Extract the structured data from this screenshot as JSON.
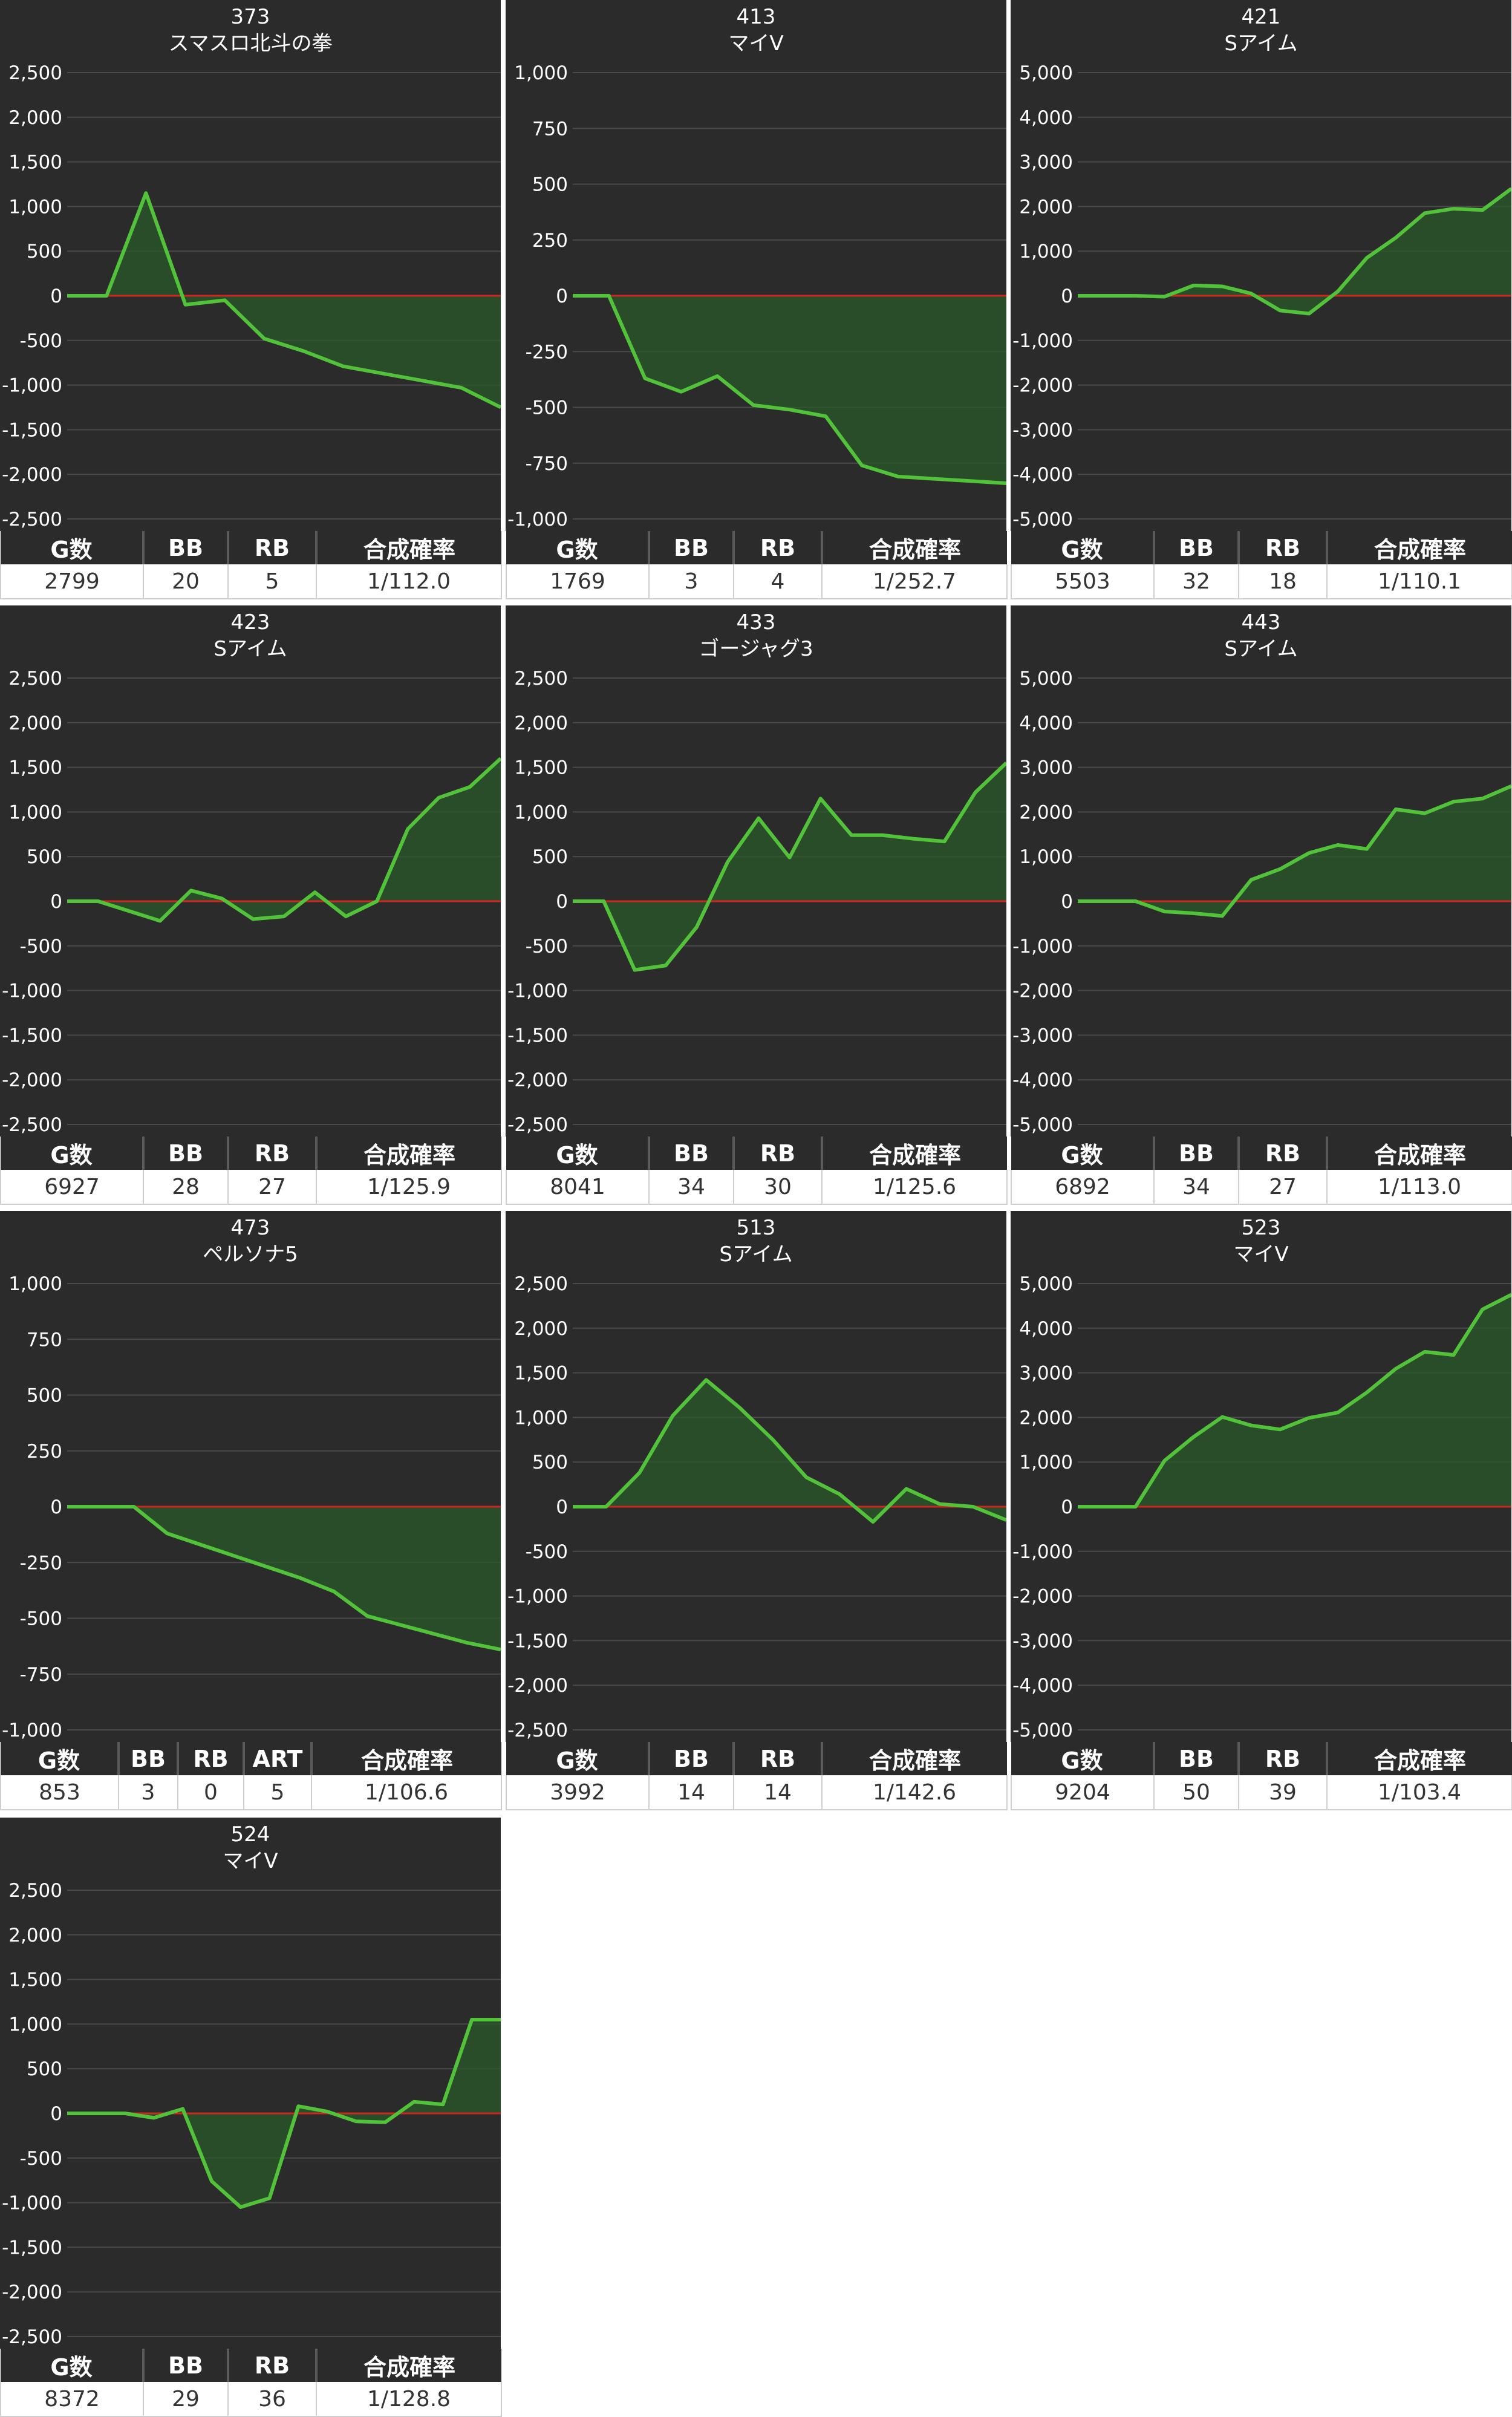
{
  "columns3": [
    "G数",
    "BB",
    "RB",
    "合成確率"
  ],
  "columns4": [
    "G数",
    "BB",
    "RB",
    "ART",
    "合成確率"
  ],
  "chart_data": [
    {
      "type": "area",
      "number": "373",
      "name": "スマスロ北斗の拳",
      "ylim": [
        -2500,
        2500
      ],
      "yticks": [
        2500,
        2000,
        1500,
        1000,
        500,
        0,
        -500,
        -1000,
        -1500,
        -2000,
        -2500
      ],
      "tick_labels": [
        "2,500",
        "2,000",
        "1,500",
        "1,000",
        "500",
        "0",
        "-500",
        "-1,000",
        "-1,500",
        "-2,000",
        "-2,500"
      ],
      "values": [
        0,
        0,
        1150,
        -100,
        -50,
        -480,
        -620,
        -790,
        -870,
        -950,
        -1030,
        -1250
      ],
      "stats": {
        "g": "2799",
        "bb": "20",
        "rb": "5",
        "prob": "1/112.0"
      }
    },
    {
      "type": "area",
      "number": "413",
      "name": "マイV",
      "ylim": [
        -1000,
        1000
      ],
      "yticks": [
        1000,
        750,
        500,
        250,
        0,
        -250,
        -500,
        -750,
        -1000
      ],
      "tick_labels": [
        "1,000",
        "750",
        "500",
        "250",
        "0",
        "-250",
        "-500",
        "-750",
        "-1,000"
      ],
      "values": [
        0,
        0,
        -370,
        -430,
        -360,
        -490,
        -510,
        -540,
        -760,
        -810,
        -820,
        -830,
        -840
      ],
      "stats": {
        "g": "1769",
        "bb": "3",
        "rb": "4",
        "prob": "1/252.7"
      }
    },
    {
      "type": "area",
      "number": "421",
      "name": "Sアイム",
      "ylim": [
        -5000,
        5000
      ],
      "yticks": [
        5000,
        4000,
        3000,
        2000,
        1000,
        0,
        -1000,
        -2000,
        -3000,
        -4000,
        -5000
      ],
      "tick_labels": [
        "5,000",
        "4,000",
        "3,000",
        "2,000",
        "1,000",
        "0",
        "-1,000",
        "-2,000",
        "-3,000",
        "-4,000",
        "-5,000"
      ],
      "values": [
        0,
        0,
        0,
        -20,
        230,
        210,
        50,
        -330,
        -400,
        100,
        850,
        1300,
        1850,
        1950,
        1920,
        2400
      ],
      "stats": {
        "g": "5503",
        "bb": "32",
        "rb": "18",
        "prob": "1/110.1"
      }
    },
    {
      "type": "area",
      "number": "423",
      "name": "Sアイム",
      "ylim": [
        -2500,
        2500
      ],
      "yticks": [
        2500,
        2000,
        1500,
        1000,
        500,
        0,
        -500,
        -1000,
        -1500,
        -2000,
        -2500
      ],
      "tick_labels": [
        "2,500",
        "2,000",
        "1,500",
        "1,000",
        "500",
        "0",
        "-500",
        "-1,000",
        "-1,500",
        "-2,000",
        "-2,500"
      ],
      "values": [
        0,
        0,
        -110,
        -220,
        120,
        30,
        -200,
        -170,
        100,
        -170,
        0,
        810,
        1160,
        1280,
        1600
      ],
      "stats": {
        "g": "6927",
        "bb": "28",
        "rb": "27",
        "prob": "1/125.9"
      }
    },
    {
      "type": "area",
      "number": "433",
      "name": "ゴージャグ3",
      "ylim": [
        -2500,
        2500
      ],
      "yticks": [
        2500,
        2000,
        1500,
        1000,
        500,
        0,
        -500,
        -1000,
        -1500,
        -2000,
        -2500
      ],
      "tick_labels": [
        "2,500",
        "2,000",
        "1,500",
        "1,000",
        "500",
        "0",
        "-500",
        "-1,000",
        "-1,500",
        "-2,000",
        "-2,500"
      ],
      "values": [
        0,
        0,
        -770,
        -720,
        -290,
        440,
        930,
        490,
        1150,
        740,
        740,
        700,
        670,
        1220,
        1550
      ],
      "stats": {
        "g": "8041",
        "bb": "34",
        "rb": "30",
        "prob": "1/125.6"
      }
    },
    {
      "type": "area",
      "number": "443",
      "name": "Sアイム",
      "ylim": [
        -5000,
        5000
      ],
      "yticks": [
        5000,
        4000,
        3000,
        2000,
        1000,
        0,
        -1000,
        -2000,
        -3000,
        -4000,
        -5000
      ],
      "tick_labels": [
        "5,000",
        "4,000",
        "3,000",
        "2,000",
        "1,000",
        "0",
        "-1,000",
        "-2,000",
        "-3,000",
        "-4,000",
        "-5,000"
      ],
      "values": [
        0,
        0,
        0,
        -230,
        -270,
        -330,
        480,
        720,
        1080,
        1260,
        1170,
        2060,
        1970,
        2230,
        2300,
        2580
      ],
      "stats": {
        "g": "6892",
        "bb": "34",
        "rb": "27",
        "prob": "1/113.0"
      }
    },
    {
      "type": "area",
      "number": "473",
      "name": "ペルソナ5",
      "ylim": [
        -1000,
        1000
      ],
      "yticks": [
        1000,
        750,
        500,
        250,
        0,
        -250,
        -500,
        -750,
        -1000
      ],
      "tick_labels": [
        "1,000",
        "750",
        "500",
        "250",
        "0",
        "-250",
        "-500",
        "-750",
        "-1,000"
      ],
      "values": [
        0,
        0,
        0,
        -120,
        -170,
        -220,
        -270,
        -320,
        -380,
        -490,
        -530,
        -570,
        -610,
        -640
      ],
      "stats": {
        "g": "853",
        "bb": "3",
        "rb": "0",
        "art": "5",
        "prob": "1/106.6"
      }
    },
    {
      "type": "area",
      "number": "513",
      "name": "Sアイム",
      "ylim": [
        -2500,
        2500
      ],
      "yticks": [
        2500,
        2000,
        1500,
        1000,
        500,
        0,
        -500,
        -1000,
        -1500,
        -2000,
        -2500
      ],
      "tick_labels": [
        "2,500",
        "2,000",
        "1,500",
        "1,000",
        "500",
        "0",
        "-500",
        "-1,000",
        "-1,500",
        "-2,000",
        "-2,500"
      ],
      "values": [
        0,
        0,
        380,
        1020,
        1420,
        1110,
        750,
        330,
        140,
        -170,
        200,
        30,
        0,
        -150
      ],
      "stats": {
        "g": "3992",
        "bb": "14",
        "rb": "14",
        "prob": "1/142.6"
      }
    },
    {
      "type": "area",
      "number": "523",
      "name": "マイV",
      "ylim": [
        -5000,
        5000
      ],
      "yticks": [
        5000,
        4000,
        3000,
        2000,
        1000,
        0,
        -1000,
        -2000,
        -3000,
        -4000,
        -5000
      ],
      "tick_labels": [
        "5,000",
        "4,000",
        "3,000",
        "2,000",
        "1,000",
        "0",
        "-1,000",
        "-2,000",
        "-3,000",
        "-4,000",
        "-5,000"
      ],
      "values": [
        0,
        0,
        0,
        1030,
        1560,
        2010,
        1820,
        1730,
        1990,
        2110,
        2560,
        3090,
        3470,
        3400,
        4420,
        4750
      ],
      "stats": {
        "g": "9204",
        "bb": "50",
        "rb": "39",
        "prob": "1/103.4"
      }
    },
    {
      "type": "area",
      "number": "524",
      "name": "マイV",
      "ylim": [
        -2500,
        2500
      ],
      "yticks": [
        2500,
        2000,
        1500,
        1000,
        500,
        0,
        -500,
        -1000,
        -1500,
        -2000,
        -2500
      ],
      "tick_labels": [
        "2,500",
        "2,000",
        "1,500",
        "1,000",
        "500",
        "0",
        "-500",
        "-1,000",
        "-1,500",
        "-2,000",
        "-2,500"
      ],
      "values": [
        0,
        0,
        0,
        -50,
        50,
        -760,
        -1050,
        -950,
        80,
        20,
        -90,
        -100,
        130,
        100,
        1050,
        1050
      ],
      "stats": {
        "g": "8372",
        "bb": "29",
        "rb": "36",
        "prob": "1/128.8"
      }
    }
  ]
}
